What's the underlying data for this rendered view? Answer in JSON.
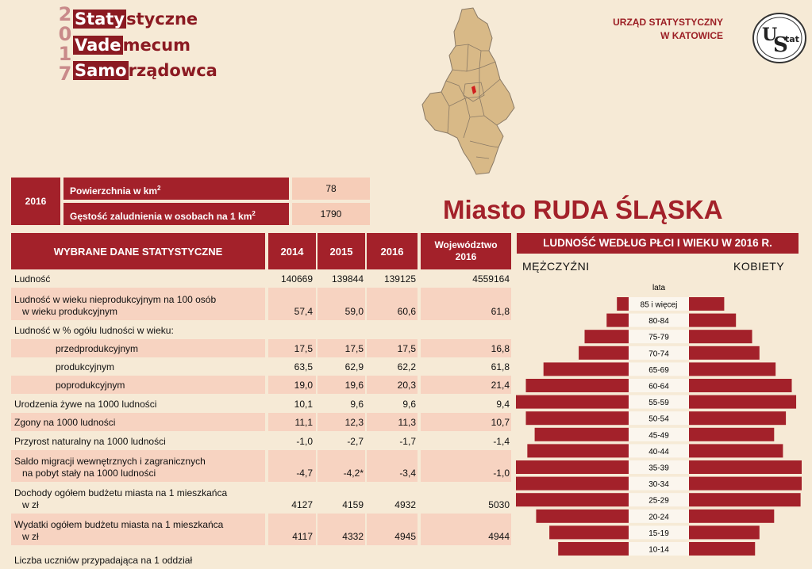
{
  "logo": {
    "year": [
      "2",
      "0",
      "1",
      "7"
    ],
    "lines": [
      {
        "hl": "Staty",
        "rest": "styczne"
      },
      {
        "hl": "Vade",
        "rest": "mecum"
      },
      {
        "hl": "Samo",
        "rest": "rządowca"
      }
    ]
  },
  "office": {
    "line1": "URZĄD STATYSTYCZNY",
    "line2": "W KATOWICE",
    "logo_text_u": "U",
    "logo_text_s": "S",
    "logo_text_tat": "tat"
  },
  "city_title": "Miasto RUDA ŚLĄSKA",
  "top_table": {
    "year": "2016",
    "rows": [
      {
        "label": "Powierzchnia w km²",
        "value": "78"
      },
      {
        "label": "Gęstość zaludnienia w osobach na 1 km²",
        "value": "1790"
      }
    ]
  },
  "main_table": {
    "headers": {
      "title": "WYBRANE DANE STATYSTYCZNE",
      "y2014": "2014",
      "y2015": "2015",
      "y2016": "2016",
      "woj1": "Województwo",
      "woj2": "2016"
    },
    "rows": [
      {
        "l1": "Ludność",
        "l2": "",
        "v": [
          "140669",
          "139844",
          "139125",
          "4559164"
        ]
      },
      {
        "l1": "Ludność w wieku nieprodukcyjnym na 100 osób",
        "l2": "w wieku produkcyjnym",
        "v": [
          "57,4",
          "59,0",
          "60,6",
          "61,8"
        ]
      },
      {
        "l1": "Ludność w % ogółu ludności w wieku:",
        "l2": "",
        "v": [
          "",
          "",
          "",
          ""
        ]
      },
      {
        "l1": "przedprodukcyjnym",
        "l2": "",
        "v": [
          "17,5",
          "17,5",
          "17,5",
          "16,8"
        ],
        "indent": true
      },
      {
        "l1": "produkcyjnym",
        "l2": "",
        "v": [
          "63,5",
          "62,9",
          "62,2",
          "61,8"
        ],
        "indent": true
      },
      {
        "l1": "poprodukcyjnym",
        "l2": "",
        "v": [
          "19,0",
          "19,6",
          "20,3",
          "21,4"
        ],
        "indent": true
      },
      {
        "l1": "Urodzenia żywe na 1000 ludności",
        "l2": "",
        "v": [
          "10,1",
          "9,6",
          "9,6",
          "9,4"
        ]
      },
      {
        "l1": "Zgony na 1000 ludności",
        "l2": "",
        "v": [
          "11,1",
          "12,3",
          "11,3",
          "10,7"
        ]
      },
      {
        "l1": "Przyrost naturalny na 1000 ludności",
        "l2": "",
        "v": [
          "-1,0",
          "-2,7",
          "-1,7",
          "-1,4"
        ]
      },
      {
        "l1": "Saldo migracji wewnętrznych i zagranicznych",
        "l2": "na pobyt stały na 1000 ludności",
        "v": [
          "-4,7",
          "-4,2*",
          "-3,4",
          "-1,0"
        ]
      },
      {
        "l1": "Dochody ogółem budżetu miasta na 1 mieszkańca",
        "l2": "w zł",
        "v": [
          "4127",
          "4159",
          "4932",
          "5030"
        ]
      },
      {
        "l1": "Wydatki ogółem budżetu miasta na 1 mieszkańca",
        "l2": "w zł",
        "v": [
          "4117",
          "4332",
          "4945",
          "4944"
        ]
      },
      {
        "l1": "Liczba uczniów przypadająca na 1 oddział",
        "l2": "",
        "v": [
          "",
          "",
          "",
          ""
        ]
      }
    ]
  },
  "pyramid": {
    "title": "LUDNOŚĆ WEDŁUG PŁCI I WIEKU W 2016 R.",
    "men_label": "MĘŻCZYŹNI",
    "women_label": "KOBIETY",
    "lata_label": "lata"
  },
  "chart_data": {
    "type": "bar",
    "title": "LUDNOŚĆ WEDŁUG PŁCI I WIEKU W 2016 R.",
    "categories": [
      "85 i więcej",
      "80-84",
      "75-79",
      "70-74",
      "65-69",
      "60-64",
      "55-59",
      "50-54",
      "45-49",
      "40-44",
      "35-39",
      "30-34",
      "25-29",
      "20-24",
      "15-19",
      "10-14"
    ],
    "series": [
      {
        "name": "MĘŻCZYŹNI",
        "values": [
          0.8,
          1.5,
          3.0,
          3.4,
          5.8,
          7.0,
          8.0,
          7.0,
          6.4,
          6.9,
          8.3,
          9.4,
          8.1,
          6.3,
          5.4,
          4.8
        ]
      },
      {
        "name": "KOBIETY",
        "values": [
          2.4,
          3.2,
          4.3,
          4.8,
          5.9,
          7.0,
          7.3,
          6.6,
          5.8,
          6.4,
          8.1,
          8.6,
          7.6,
          5.8,
          4.8,
          4.5
        ]
      }
    ],
    "xlabel": "",
    "ylabel": "lata",
    "legend": "top"
  }
}
